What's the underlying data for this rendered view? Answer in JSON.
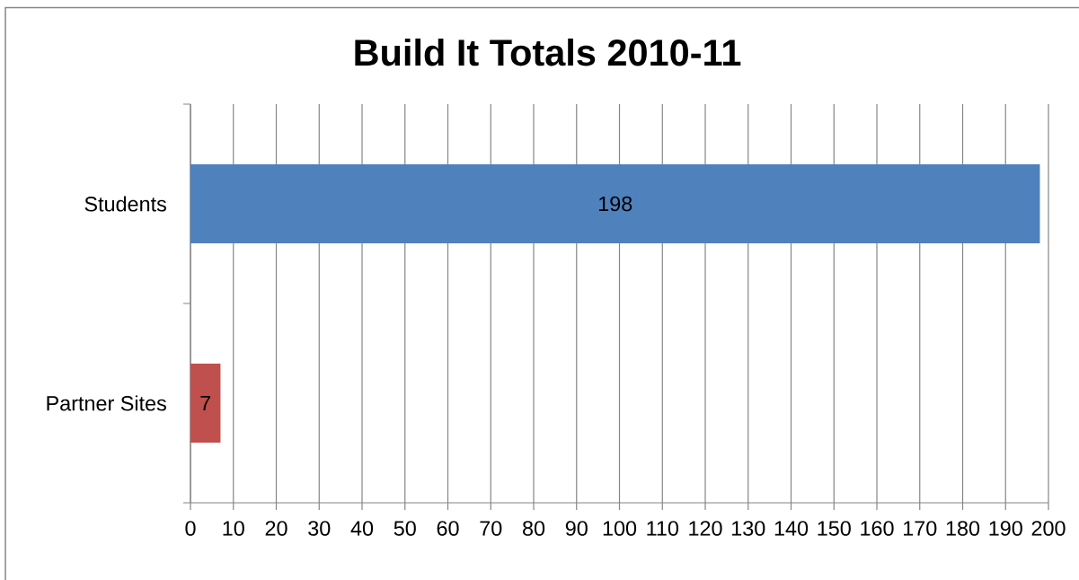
{
  "chart_data": {
    "type": "bar",
    "orientation": "horizontal",
    "title": "Build It Totals 2010-11",
    "categories": [
      "Students",
      "Partner Sites"
    ],
    "values": [
      198,
      7
    ],
    "colors": [
      "#4f81bd",
      "#c0504d"
    ],
    "xlim": [
      0,
      200
    ],
    "xticks": [
      0,
      10,
      20,
      30,
      40,
      50,
      60,
      70,
      80,
      90,
      100,
      110,
      120,
      130,
      140,
      150,
      160,
      170,
      180,
      190,
      200
    ],
    "grid": "x",
    "data_labels": true
  }
}
